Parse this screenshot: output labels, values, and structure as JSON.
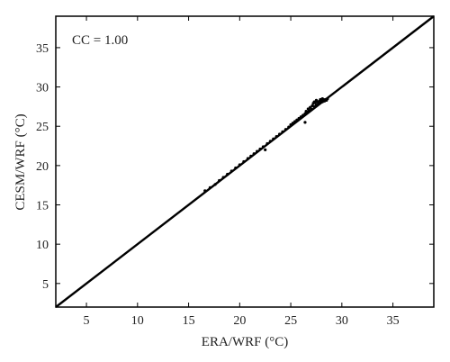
{
  "chart_data": {
    "type": "scatter",
    "xlabel": "ERA/WRF (°C)",
    "ylabel": "CESM/WRF (°C)",
    "xlim": [
      2,
      39
    ],
    "ylim": [
      2,
      39
    ],
    "xticks": [
      5,
      10,
      15,
      20,
      25,
      30,
      35
    ],
    "yticks": [
      5,
      10,
      15,
      20,
      25,
      30,
      35
    ],
    "annotation": "CC = 1.00",
    "reference_line": {
      "from": [
        2,
        2
      ],
      "to": [
        39,
        39
      ]
    },
    "grid": false,
    "series": [
      {
        "points": [
          [
            16.6,
            16.8
          ],
          [
            17.1,
            17.2
          ],
          [
            17.6,
            17.6
          ],
          [
            18.0,
            18.1
          ],
          [
            18.4,
            18.5
          ],
          [
            18.8,
            18.9
          ],
          [
            19.2,
            19.3
          ],
          [
            19.6,
            19.7
          ],
          [
            20.0,
            20.1
          ],
          [
            20.4,
            20.5
          ],
          [
            20.8,
            20.9
          ],
          [
            21.1,
            21.2
          ],
          [
            21.4,
            21.5
          ],
          [
            21.7,
            21.8
          ],
          [
            22.0,
            22.1
          ],
          [
            22.3,
            22.4
          ],
          [
            22.5,
            22.0
          ],
          [
            22.7,
            22.8
          ],
          [
            23.0,
            23.1
          ],
          [
            23.3,
            23.4
          ],
          [
            23.6,
            23.7
          ],
          [
            23.9,
            24.0
          ],
          [
            24.2,
            24.3
          ],
          [
            24.5,
            24.6
          ],
          [
            24.8,
            24.9
          ],
          [
            25.0,
            25.2
          ],
          [
            25.2,
            25.4
          ],
          [
            25.4,
            25.6
          ],
          [
            25.6,
            25.8
          ],
          [
            25.8,
            26.0
          ],
          [
            26.0,
            26.2
          ],
          [
            26.2,
            26.4
          ],
          [
            26.4,
            26.6
          ],
          [
            26.4,
            25.5
          ],
          [
            26.6,
            26.8
          ],
          [
            26.8,
            27.0
          ],
          [
            26.9,
            27.4
          ],
          [
            27.0,
            27.2
          ],
          [
            27.1,
            27.6
          ],
          [
            27.2,
            27.9
          ],
          [
            27.3,
            27.5
          ],
          [
            27.4,
            28.0
          ],
          [
            27.5,
            27.7
          ],
          [
            27.6,
            28.1
          ],
          [
            27.7,
            27.9
          ],
          [
            27.8,
            28.2
          ],
          [
            27.9,
            28.0
          ],
          [
            28.0,
            28.3
          ],
          [
            28.1,
            28.1
          ],
          [
            28.2,
            28.4
          ],
          [
            28.3,
            28.2
          ],
          [
            28.4,
            28.4
          ],
          [
            28.5,
            28.3
          ],
          [
            28.6,
            28.5
          ],
          [
            27.5,
            28.3
          ],
          [
            27.3,
            28.1
          ],
          [
            27.9,
            28.4
          ],
          [
            28.1,
            28.5
          ],
          [
            26.7,
            27.2
          ],
          [
            26.5,
            26.9
          ]
        ]
      }
    ]
  }
}
